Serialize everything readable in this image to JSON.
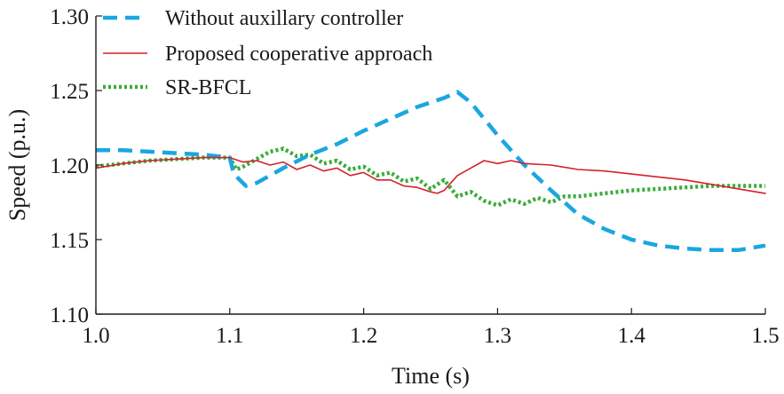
{
  "chart_data": {
    "type": "line",
    "xlabel": "Time (s)",
    "ylabel": "Speed (p.u.)",
    "xlim": [
      1.0,
      1.5
    ],
    "ylim": [
      1.1,
      1.3
    ],
    "xticks": [
      1.0,
      1.1,
      1.2,
      1.3,
      1.4,
      1.5
    ],
    "xtick_labels": [
      "1.0",
      "1.1",
      "1.2",
      "1.3",
      "1.4",
      "1.5"
    ],
    "yticks": [
      1.1,
      1.15,
      1.2,
      1.25,
      1.3
    ],
    "ytick_labels": [
      "1.10",
      "1.15",
      "1.20",
      "1.25",
      "1.30"
    ],
    "grid": false,
    "legend_position": "top-left",
    "series": [
      {
        "name": "Without auxillary controller",
        "color": "#1aa7e0",
        "style": "dashed",
        "x": [
          1.0,
          1.02,
          1.04,
          1.06,
          1.08,
          1.1,
          1.103,
          1.112,
          1.12,
          1.14,
          1.16,
          1.18,
          1.2,
          1.22,
          1.24,
          1.26,
          1.27,
          1.28,
          1.3,
          1.32,
          1.34,
          1.36,
          1.38,
          1.4,
          1.42,
          1.44,
          1.46,
          1.48,
          1.5
        ],
        "y": [
          1.21,
          1.21,
          1.209,
          1.208,
          1.207,
          1.205,
          1.194,
          1.186,
          1.188,
          1.198,
          1.207,
          1.214,
          1.223,
          1.231,
          1.239,
          1.245,
          1.249,
          1.242,
          1.22,
          1.2,
          1.183,
          1.167,
          1.157,
          1.15,
          1.146,
          1.144,
          1.143,
          1.143,
          1.146
        ]
      },
      {
        "name": "Proposed cooperative approach",
        "color": "#d4202a",
        "style": "solid",
        "x": [
          1.0,
          1.02,
          1.04,
          1.06,
          1.08,
          1.1,
          1.11,
          1.12,
          1.13,
          1.14,
          1.15,
          1.16,
          1.17,
          1.18,
          1.19,
          1.2,
          1.21,
          1.22,
          1.23,
          1.24,
          1.25,
          1.255,
          1.26,
          1.27,
          1.28,
          1.29,
          1.3,
          1.31,
          1.32,
          1.34,
          1.36,
          1.38,
          1.4,
          1.42,
          1.44,
          1.46,
          1.48,
          1.5
        ],
        "y": [
          1.198,
          1.201,
          1.203,
          1.204,
          1.205,
          1.205,
          1.202,
          1.203,
          1.2,
          1.202,
          1.197,
          1.2,
          1.196,
          1.198,
          1.193,
          1.195,
          1.19,
          1.19,
          1.186,
          1.185,
          1.182,
          1.181,
          1.183,
          1.193,
          1.198,
          1.203,
          1.201,
          1.203,
          1.201,
          1.2,
          1.197,
          1.196,
          1.194,
          1.192,
          1.19,
          1.187,
          1.184,
          1.181
        ]
      },
      {
        "name": "SR-BFCL",
        "color": "#3aab3a",
        "style": "dotted",
        "x": [
          1.0,
          1.02,
          1.04,
          1.06,
          1.08,
          1.1,
          1.105,
          1.11,
          1.12,
          1.13,
          1.14,
          1.15,
          1.16,
          1.17,
          1.18,
          1.19,
          1.2,
          1.21,
          1.22,
          1.23,
          1.24,
          1.25,
          1.26,
          1.27,
          1.28,
          1.29,
          1.3,
          1.31,
          1.32,
          1.33,
          1.34,
          1.35,
          1.36,
          1.38,
          1.4,
          1.42,
          1.44,
          1.46,
          1.48,
          1.5
        ],
        "y": [
          1.199,
          1.201,
          1.203,
          1.204,
          1.205,
          1.205,
          1.197,
          1.199,
          1.204,
          1.209,
          1.211,
          1.206,
          1.207,
          1.201,
          1.203,
          1.197,
          1.199,
          1.193,
          1.195,
          1.189,
          1.191,
          1.184,
          1.19,
          1.179,
          1.182,
          1.176,
          1.173,
          1.177,
          1.174,
          1.178,
          1.175,
          1.179,
          1.179,
          1.181,
          1.183,
          1.184,
          1.185,
          1.186,
          1.186,
          1.186
        ]
      }
    ]
  }
}
